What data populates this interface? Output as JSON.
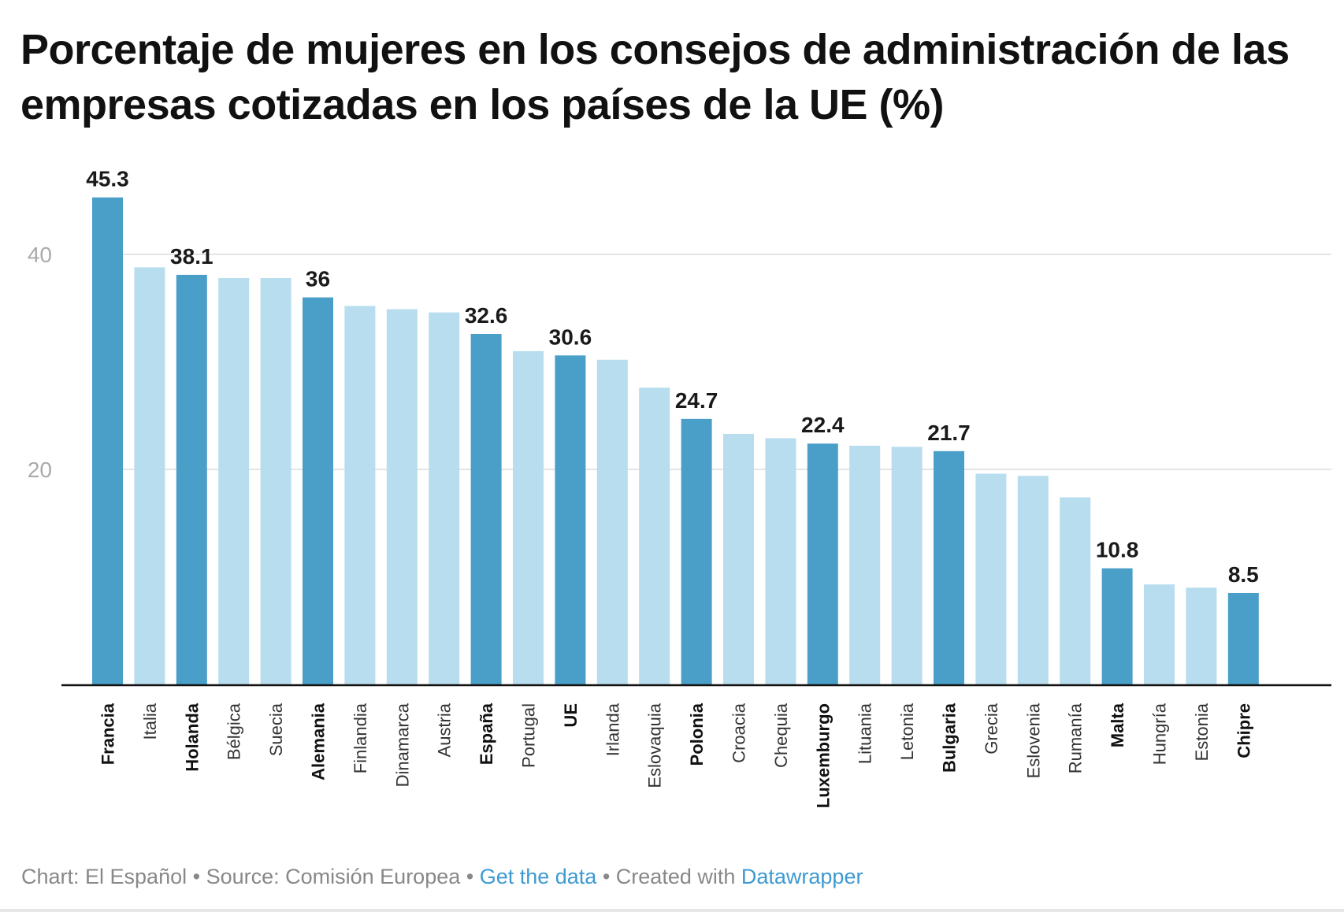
{
  "title": "Porcentaje de mujeres en los consejos de administración de las empresas cotizadas en los países de la UE (%)",
  "colors": {
    "highlight": "#4a9fc9",
    "default": "#b8ddee",
    "gridline": "#e4e4e4",
    "axis": "#111111",
    "tick_label": "#aaaaaa",
    "link": "#3d9ad1"
  },
  "chart_data": {
    "type": "bar",
    "title": "Porcentaje de mujeres en los consejos de administración de las empresas cotizadas en los países de la UE (%)",
    "xlabel": "",
    "ylabel": "",
    "ylim": [
      0,
      46
    ],
    "yticks": [
      20,
      40
    ],
    "grid": true,
    "categories": [
      "Francia",
      "Italia",
      "Holanda",
      "Bélgica",
      "Suecia",
      "Alemania",
      "Finlandia",
      "Dinamarca",
      "Austria",
      "España",
      "Portugal",
      "UE",
      "Irlanda",
      "Eslovaquia",
      "Polonia",
      "Croacia",
      "Chequia",
      "Luxemburgo",
      "Lituania",
      "Letonia",
      "Bulgaria",
      "Grecia",
      "Eslovenia",
      "Rumanía",
      "Malta",
      "Hungría",
      "Estonia",
      "Chipre"
    ],
    "values": [
      45.3,
      38.8,
      38.1,
      37.8,
      37.8,
      36,
      35.2,
      34.9,
      34.6,
      32.6,
      31.0,
      30.6,
      30.2,
      27.6,
      24.7,
      23.3,
      22.9,
      22.4,
      22.2,
      22.1,
      21.7,
      19.6,
      19.4,
      17.4,
      10.8,
      9.3,
      9.0,
      8.5
    ],
    "highlighted": [
      "Francia",
      "Holanda",
      "Alemania",
      "España",
      "UE",
      "Polonia",
      "Luxemburgo",
      "Bulgaria",
      "Malta",
      "Chipre"
    ],
    "data_labels": {
      "Francia": "45.3",
      "Holanda": "38.1",
      "Alemania": "36",
      "España": "32.6",
      "UE": "30.6",
      "Polonia": "24.7",
      "Luxemburgo": "22.4",
      "Bulgaria": "21.7",
      "Malta": "10.8",
      "Chipre": "8.5"
    }
  },
  "footer": {
    "chart_by": "Chart: El Español",
    "sep1": " • ",
    "source": "Source: Comisión Europea",
    "sep2": " • ",
    "get_data": "Get the data",
    "sep3": " • ",
    "created_with": "Created with ",
    "datawrapper": "Datawrapper"
  }
}
